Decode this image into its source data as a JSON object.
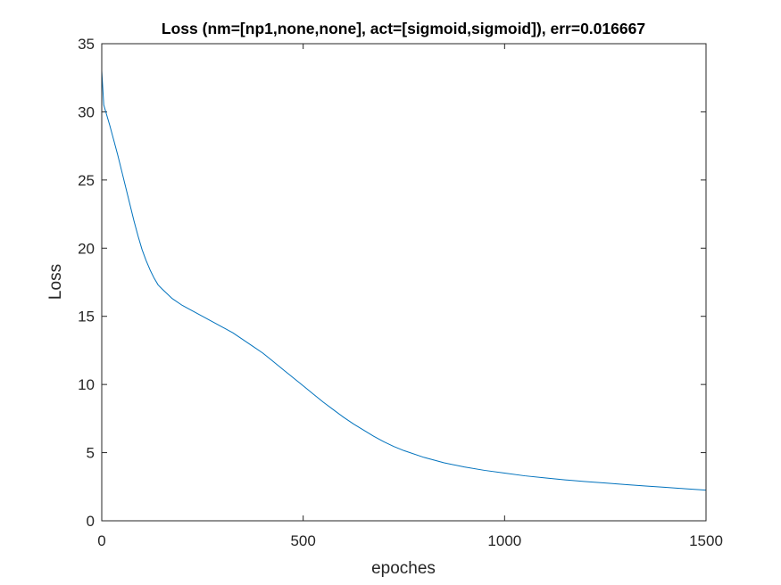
{
  "chart_data": {
    "type": "line",
    "title": "Loss (nm=[np1,none,none], act=[sigmoid,sigmoid]), err=0.016667",
    "xlabel": "epoches",
    "ylabel": "Loss",
    "xlim": [
      0,
      1500
    ],
    "ylim": [
      0,
      35
    ],
    "xticks": [
      "0",
      "500",
      "1000",
      "1500"
    ],
    "yticks": [
      "0",
      "5",
      "10",
      "15",
      "20",
      "25",
      "30",
      "35"
    ],
    "grid": false,
    "series": [
      {
        "color": "#0072BD",
        "x": [
          0,
          2,
          5,
          10,
          20,
          30,
          40,
          50,
          60,
          70,
          80,
          90,
          100,
          110,
          120,
          130,
          140,
          150,
          175,
          200,
          225,
          250,
          275,
          300,
          325,
          350,
          375,
          400,
          425,
          450,
          475,
          500,
          525,
          550,
          575,
          600,
          625,
          650,
          675,
          700,
          725,
          750,
          800,
          850,
          900,
          950,
          1000,
          1050,
          1100,
          1150,
          1200,
          1250,
          1300,
          1350,
          1400,
          1450,
          1500
        ],
        "y": [
          33.0,
          32.0,
          30.5,
          30.0,
          29.0,
          27.9,
          26.8,
          25.6,
          24.4,
          23.2,
          22.0,
          20.9,
          19.9,
          19.1,
          18.4,
          17.8,
          17.3,
          17.0,
          16.3,
          15.8,
          15.4,
          15.0,
          14.6,
          14.2,
          13.8,
          13.3,
          12.8,
          12.3,
          11.7,
          11.1,
          10.5,
          9.9,
          9.3,
          8.7,
          8.15,
          7.6,
          7.1,
          6.65,
          6.2,
          5.8,
          5.45,
          5.15,
          4.65,
          4.25,
          3.95,
          3.7,
          3.5,
          3.3,
          3.15,
          3.0,
          2.88,
          2.77,
          2.66,
          2.55,
          2.45,
          2.35,
          2.25
        ]
      }
    ]
  }
}
